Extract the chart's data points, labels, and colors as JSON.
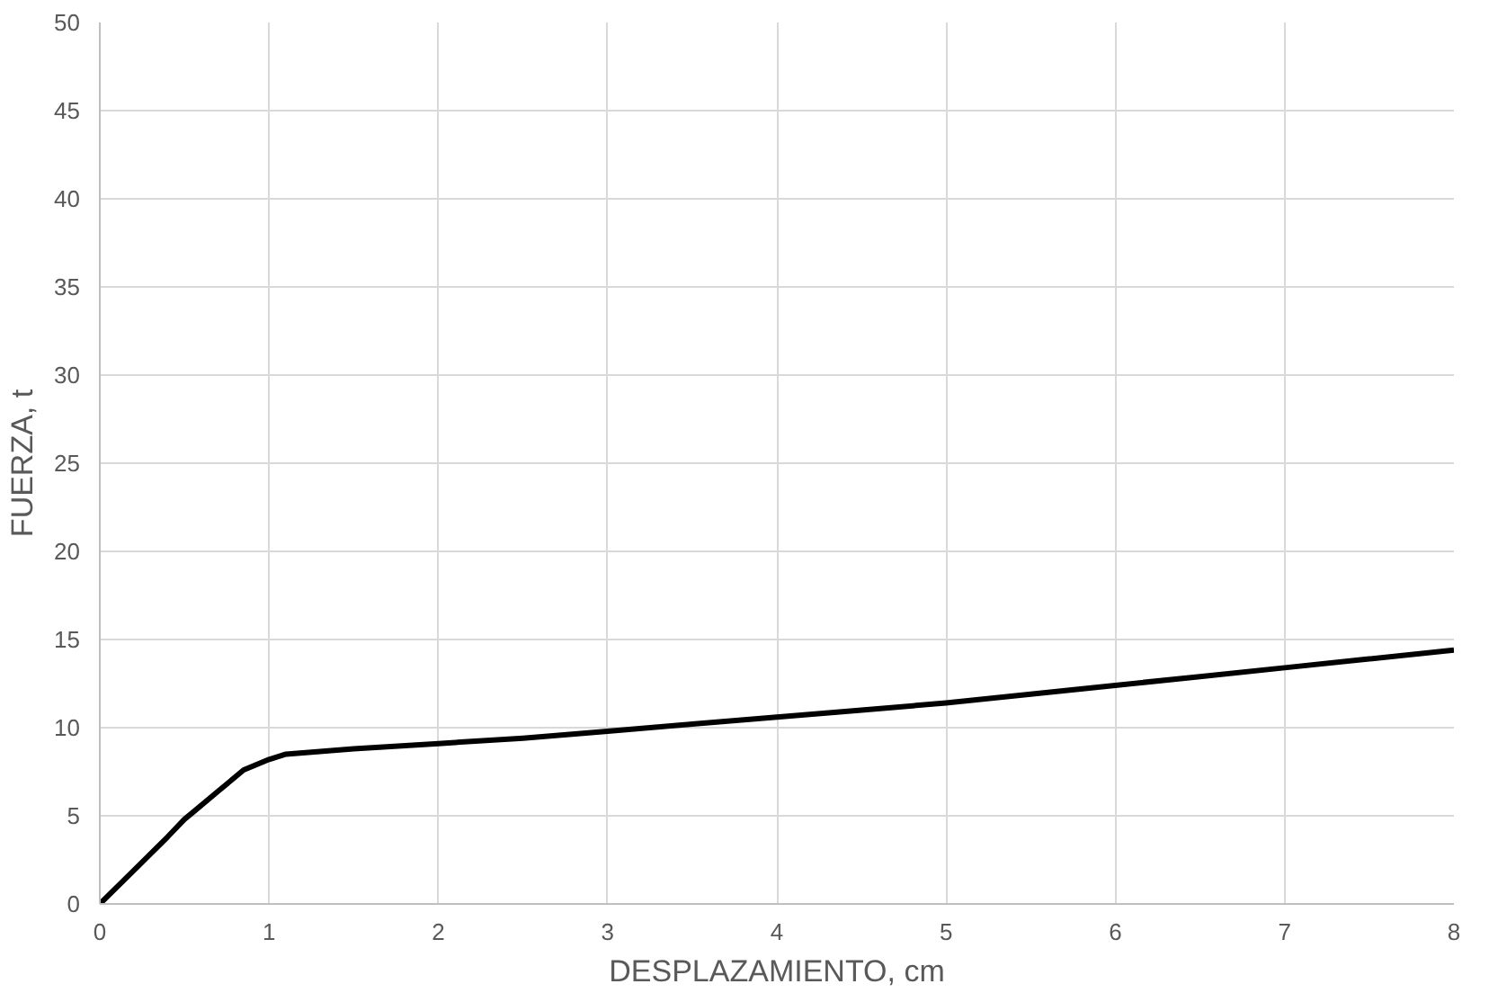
{
  "chart_data": {
    "type": "line",
    "xlabel": "DESPLAZAMIENTO, cm",
    "ylabel": "FUERZA, t",
    "x": [
      0,
      0.2,
      0.4,
      0.5,
      0.55,
      0.7,
      0.85,
      1.0,
      1.1,
      1.5,
      2,
      2.5,
      3,
      3.5,
      4,
      4.5,
      5,
      5.5,
      6,
      6.5,
      7,
      7.5,
      8
    ],
    "series": [
      {
        "color": "#000000",
        "values": [
          0,
          1.9,
          3.8,
          4.8,
          5.2,
          6.4,
          7.6,
          8.2,
          8.5,
          8.8,
          9.1,
          9.4,
          9.8,
          10.2,
          10.6,
          11.0,
          11.4,
          11.9,
          12.4,
          12.9,
          13.4,
          13.9,
          14.4
        ]
      }
    ],
    "xlim": [
      0,
      8
    ],
    "ylim": [
      0,
      50
    ],
    "xticks": [
      0,
      1,
      2,
      3,
      4,
      5,
      6,
      7,
      8
    ],
    "yticks": [
      0,
      5,
      10,
      15,
      20,
      25,
      30,
      35,
      40,
      45,
      50
    ],
    "grid": true,
    "marker": "none",
    "line_style": "solid"
  }
}
